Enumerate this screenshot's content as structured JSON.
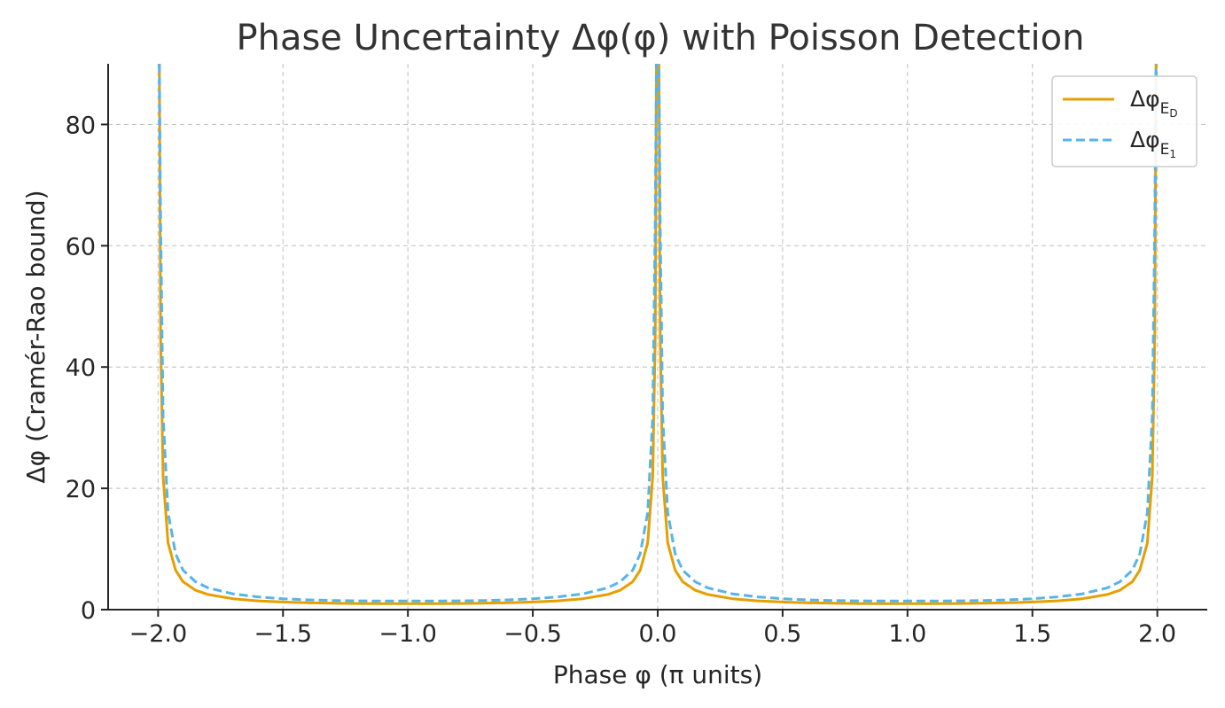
{
  "chart_data": {
    "type": "line",
    "title": "Phase Uncertainty Δφ(φ) with Poisson Detection",
    "xlabel": "Phase φ (π units)",
    "ylabel": "Δφ (Cramér-Rao bound)",
    "xlim": [
      -2.2,
      2.2
    ],
    "ylim": [
      0,
      90
    ],
    "xticks": [
      -2.0,
      -1.5,
      -1.0,
      -0.5,
      0.0,
      0.5,
      1.0,
      1.5,
      2.0
    ],
    "xtick_labels": [
      "−2.0",
      "−1.5",
      "−1.0",
      "−0.5",
      "0.0",
      "0.5",
      "1.0",
      "1.5",
      "2.0"
    ],
    "yticks": [
      0,
      20,
      40,
      60,
      80
    ],
    "ytick_labels": [
      "0",
      "20",
      "40",
      "60",
      "80"
    ],
    "grid": true,
    "legend_position": "top-right",
    "series": [
      {
        "name": "Δφ_{E_D}",
        "legend_main": "Δφ",
        "legend_sub": "E",
        "legend_subsub": "D",
        "color": "#E69F00",
        "dash": "solid",
        "x": [
          -1.995,
          -1.99,
          -1.98,
          -1.96,
          -1.93,
          -1.9,
          -1.85,
          -1.8,
          -1.7,
          -1.6,
          -1.5,
          -1.4,
          -1.3,
          -1.2,
          -1.1,
          -1.0,
          -0.9,
          -0.8,
          -0.7,
          -0.6,
          -0.5,
          -0.4,
          -0.3,
          -0.2,
          -0.15,
          -0.1,
          -0.07,
          -0.04,
          -0.02,
          -0.01,
          -0.005,
          0.005,
          0.01,
          0.02,
          0.04,
          0.07,
          0.1,
          0.15,
          0.2,
          0.3,
          0.4,
          0.5,
          0.6,
          0.7,
          0.8,
          0.9,
          1.0,
          1.1,
          1.2,
          1.3,
          1.4,
          1.5,
          1.6,
          1.7,
          1.8,
          1.85,
          1.9,
          1.93,
          1.96,
          1.98,
          1.99,
          1.995
        ],
        "y": [
          90,
          45,
          22,
          11,
          6.5,
          4.6,
          3.2,
          2.5,
          1.8,
          1.45,
          1.25,
          1.12,
          1.05,
          1.01,
          1.0,
          1.0,
          1.0,
          1.01,
          1.05,
          1.12,
          1.25,
          1.45,
          1.8,
          2.5,
          3.2,
          4.6,
          6.5,
          11,
          22,
          45,
          90,
          90,
          45,
          22,
          11,
          6.5,
          4.6,
          3.2,
          2.5,
          1.8,
          1.45,
          1.25,
          1.12,
          1.05,
          1.01,
          1.0,
          1.0,
          1.0,
          1.01,
          1.05,
          1.12,
          1.25,
          1.45,
          1.8,
          2.5,
          3.2,
          4.6,
          6.5,
          11,
          22,
          45,
          90
        ]
      },
      {
        "name": "Δφ_{E_1}",
        "legend_main": "Δφ",
        "legend_sub": "E",
        "legend_subsub": "1",
        "color": "#56B4E9",
        "dash": "dashed",
        "x": [
          -1.995,
          -1.99,
          -1.98,
          -1.96,
          -1.93,
          -1.9,
          -1.85,
          -1.8,
          -1.7,
          -1.6,
          -1.5,
          -1.4,
          -1.3,
          -1.2,
          -1.1,
          -1.0,
          -0.9,
          -0.8,
          -0.7,
          -0.6,
          -0.5,
          -0.4,
          -0.3,
          -0.2,
          -0.15,
          -0.1,
          -0.07,
          -0.04,
          -0.02,
          -0.01,
          -0.005,
          0.005,
          0.01,
          0.02,
          0.04,
          0.07,
          0.1,
          0.15,
          0.2,
          0.3,
          0.4,
          0.5,
          0.6,
          0.7,
          0.8,
          0.9,
          1.0,
          1.1,
          1.2,
          1.3,
          1.4,
          1.5,
          1.6,
          1.7,
          1.8,
          1.85,
          1.9,
          1.93,
          1.96,
          1.98,
          1.99,
          1.995
        ],
        "y": [
          90,
          64,
          32,
          16,
          9.2,
          6.5,
          4.6,
          3.6,
          2.6,
          2.1,
          1.8,
          1.6,
          1.5,
          1.45,
          1.42,
          1.41,
          1.42,
          1.45,
          1.5,
          1.6,
          1.8,
          2.1,
          2.6,
          3.6,
          4.6,
          6.5,
          9.2,
          16,
          32,
          64,
          90,
          90,
          64,
          32,
          16,
          9.2,
          6.5,
          4.6,
          3.6,
          2.6,
          2.1,
          1.8,
          1.6,
          1.5,
          1.45,
          1.42,
          1.41,
          1.42,
          1.45,
          1.5,
          1.6,
          1.8,
          2.1,
          2.6,
          3.6,
          4.6,
          6.5,
          9.2,
          16,
          32,
          64,
          90
        ]
      }
    ]
  }
}
